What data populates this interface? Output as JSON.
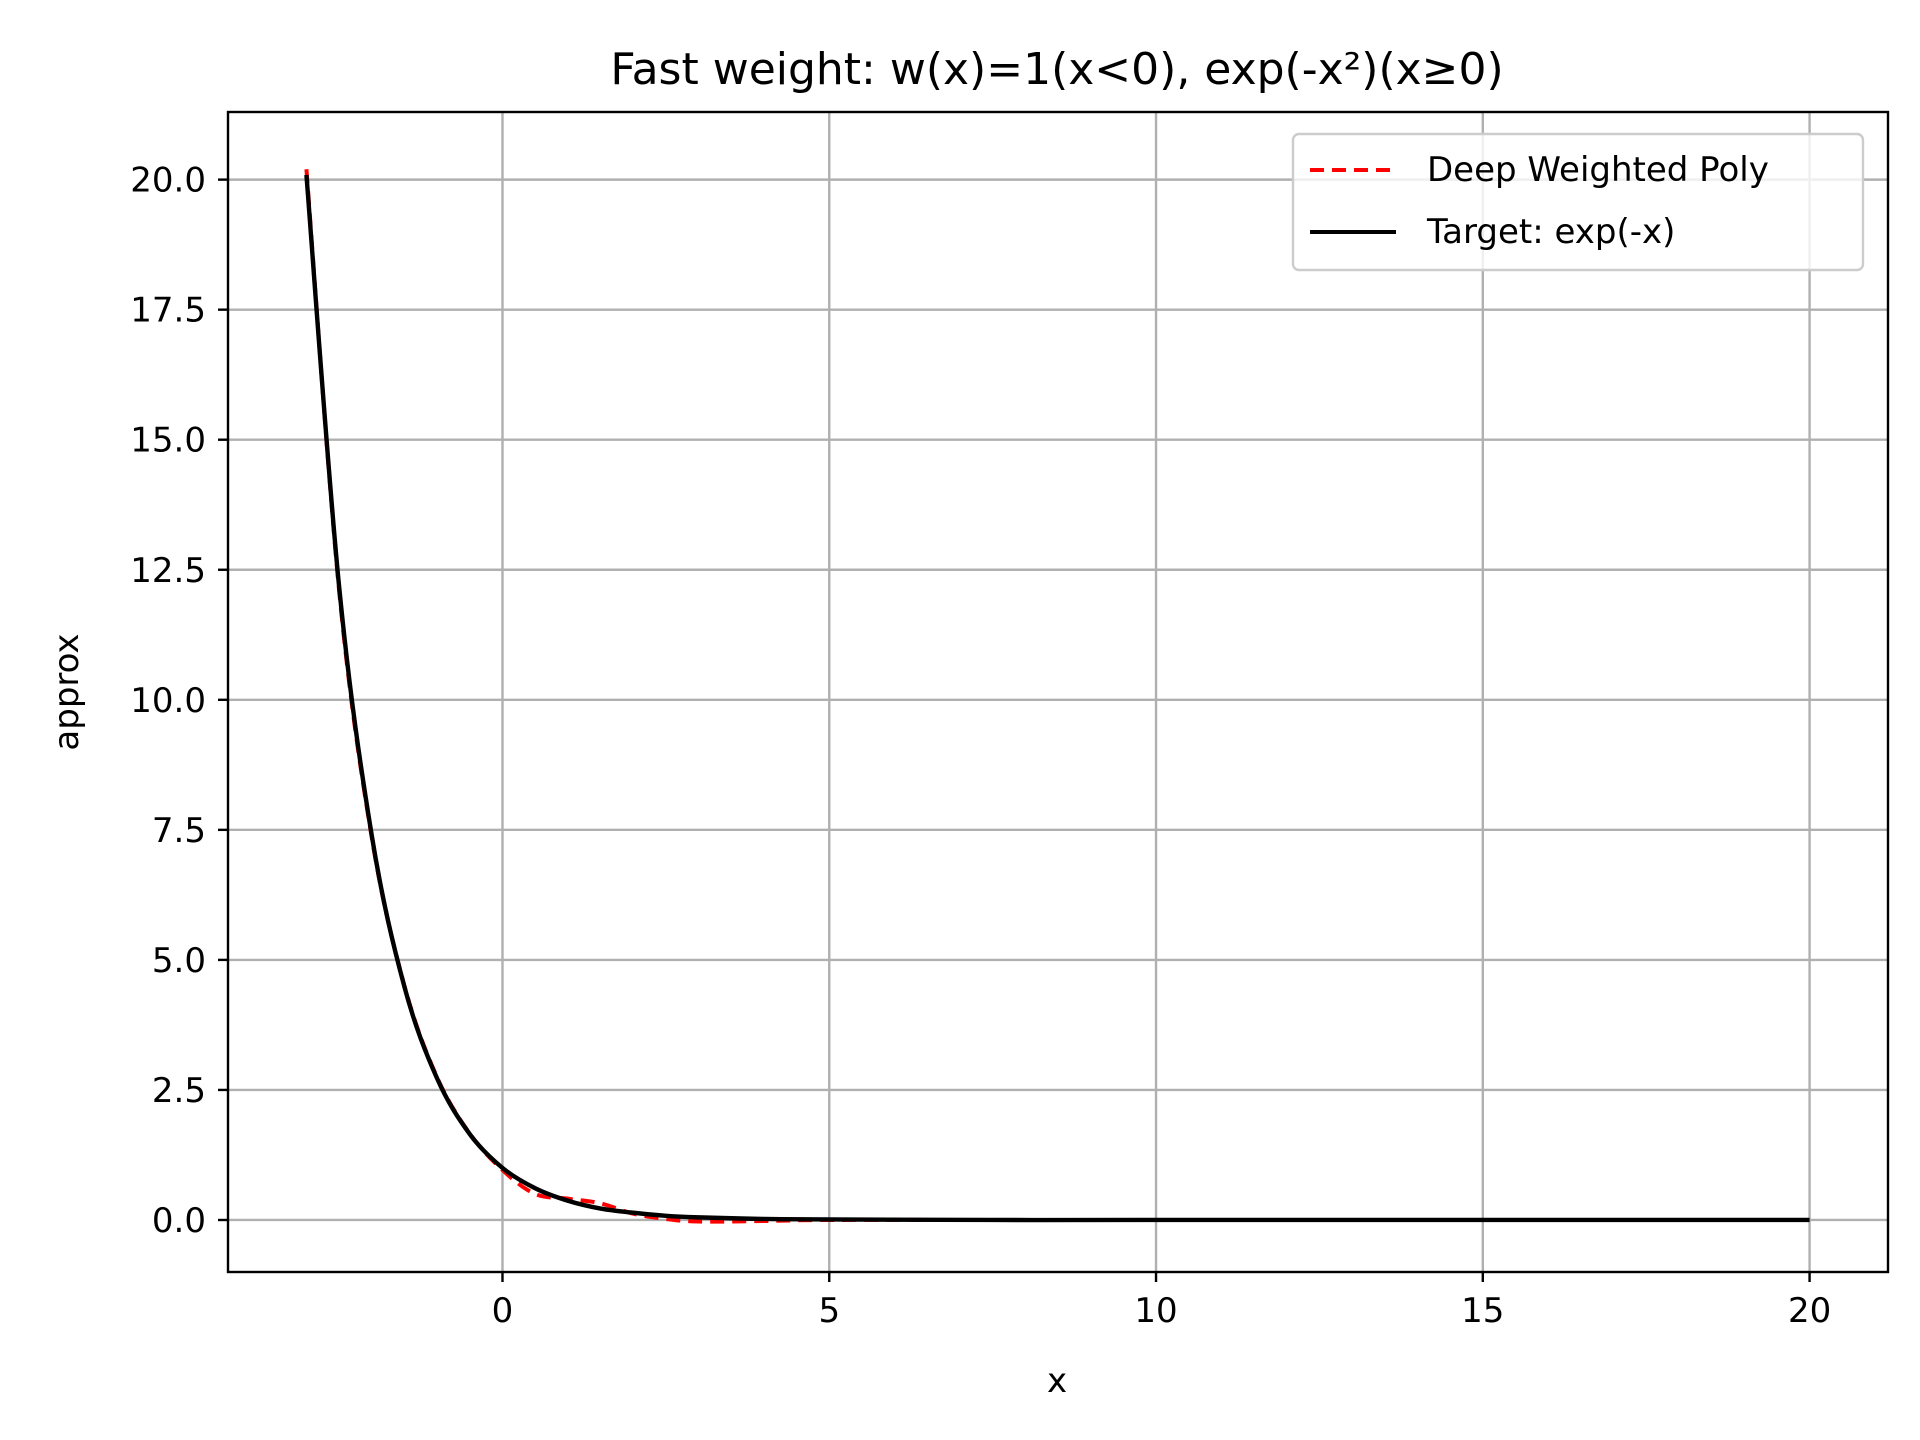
{
  "chart_data": {
    "type": "line",
    "title": "Fast weight: w(x)=1(x<0), exp(-x²)(x≥0)",
    "xlabel": "x",
    "ylabel": "approx",
    "xlim": [
      -4.2,
      21.2
    ],
    "ylim": [
      -1.0,
      21.3
    ],
    "x_ticks": [
      0,
      5,
      10,
      15,
      20
    ],
    "x_tick_labels": [
      "0",
      "5",
      "10",
      "15",
      "20"
    ],
    "y_ticks": [
      0,
      2.5,
      5,
      7.5,
      10,
      12.5,
      15,
      17.5,
      20
    ],
    "y_tick_labels": [
      "0.0",
      "2.5",
      "5.0",
      "7.5",
      "10.0",
      "12.5",
      "15.0",
      "17.5",
      "20.0"
    ],
    "grid": true,
    "legend_position": "upper right",
    "series": [
      {
        "name": "Deep Weighted Poly",
        "color": "#ff0000",
        "style": "dashed",
        "x": [
          -3.0,
          -2.5,
          -2.0,
          -1.5,
          -1.0,
          -0.5,
          0.0,
          0.5,
          1.0,
          1.5,
          2.0,
          2.5,
          3.0,
          4.0,
          5.0,
          7.5,
          10.0,
          12.5,
          15.0,
          17.5,
          20.0
        ],
        "y": [
          20.2,
          12.1,
          7.35,
          4.5,
          2.74,
          1.66,
          0.96,
          0.5,
          0.41,
          0.32,
          0.12,
          0.02,
          -0.03,
          -0.02,
          0.0,
          0.0,
          0.0,
          0.0,
          0.0,
          0.0,
          0.0
        ]
      },
      {
        "name": "Target: exp(-x)",
        "color": "#000000",
        "style": "solid",
        "x": [
          -3.0,
          -2.5,
          -2.0,
          -1.5,
          -1.0,
          -0.5,
          0.0,
          0.5,
          1.0,
          1.5,
          2.0,
          2.5,
          3.0,
          4.0,
          5.0,
          7.5,
          10.0,
          12.5,
          15.0,
          17.5,
          20.0
        ],
        "y": [
          20.09,
          12.18,
          7.39,
          4.48,
          2.72,
          1.65,
          1.0,
          0.61,
          0.37,
          0.22,
          0.14,
          0.08,
          0.05,
          0.02,
          0.01,
          0.0,
          0.0,
          0.0,
          0.0,
          0.0,
          0.0
        ]
      }
    ]
  }
}
